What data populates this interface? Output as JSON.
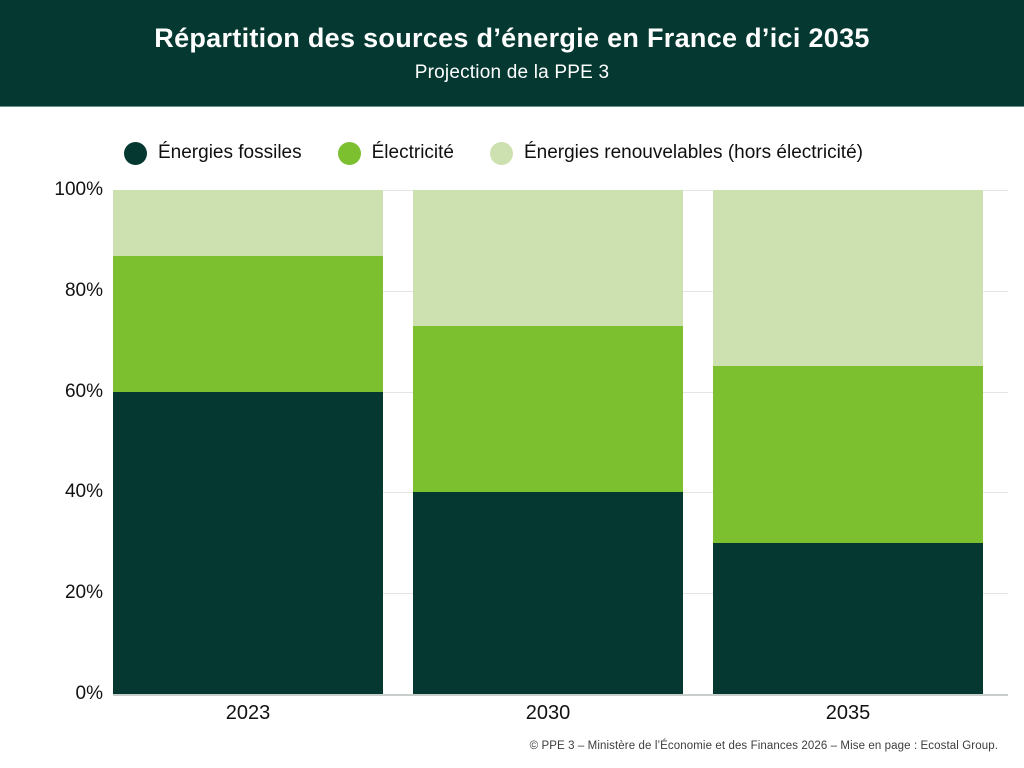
{
  "header": {
    "title": "Répartition des sources d’énergie en France d’ici 2035",
    "subtitle": "Projection de la PPE 3"
  },
  "chart_data": {
    "type": "bar",
    "stacked": true,
    "title": "Répartition des sources d’énergie en France d’ici 2035",
    "subtitle": "Projection de la PPE 3",
    "categories": [
      "2023",
      "2030",
      "2035"
    ],
    "series": [
      {
        "name": "Énergies fossiles",
        "color": "#043831",
        "values": [
          60,
          40,
          30
        ]
      },
      {
        "name": "Électricité",
        "color": "#7cbf2f",
        "values": [
          27,
          33,
          35
        ]
      },
      {
        "name": "Énergies renouvelables (hors électricité)",
        "color": "#cde0af",
        "values": [
          13,
          27,
          35
        ]
      }
    ],
    "y_ticks": [
      {
        "value": 100,
        "label": "100%"
      },
      {
        "value": 80,
        "label": "80%"
      },
      {
        "value": 60,
        "label": "60%"
      },
      {
        "value": 40,
        "label": "40%"
      },
      {
        "value": 20,
        "label": "20%"
      },
      {
        "value": 0,
        "label": "0%"
      }
    ],
    "ylim": [
      0,
      100
    ],
    "unit": "%",
    "grid": "horizontal",
    "legend_position": "top"
  },
  "footer": {
    "credit": "© PPE 3 – Ministère de l’Économie et des Finances 2026 – Mise en page : Ecostal Group."
  },
  "colors": {
    "header_bg": "#043831",
    "background": "#ffffff",
    "grid_line": "#e4e4e4",
    "axis_line": "#c9cecd",
    "text": "#121212",
    "footer_text": "#3d3d3d"
  }
}
